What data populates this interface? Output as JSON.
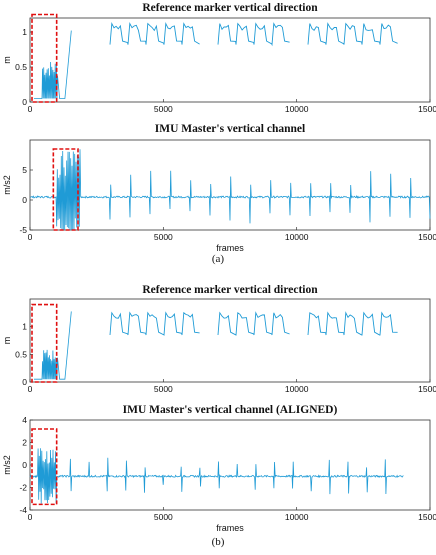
{
  "chart_data": [
    {
      "type": "line",
      "title": "Reference marker vertical direction",
      "xlabel": "",
      "ylabel": "m",
      "xlim": [
        0,
        15000
      ],
      "ylim": [
        0,
        1.2
      ],
      "xticks": [
        0,
        5000,
        10000,
        15000
      ],
      "yticks": [
        0,
        0.5,
        1
      ],
      "ytick_labels": [
        "0",
        "0.5",
        "1"
      ],
      "color": "#1f9bd6",
      "segments": [
        {
          "x": [
            450,
            1550
          ],
          "y_base": 0.05,
          "bursts": {
            "n": 14,
            "amp": 0.6
          }
        },
        {
          "x": [
            3000,
            13800
          ],
          "y_base": 0.95,
          "cycles": {
            "n": 16,
            "low": 0.82,
            "high": 1.12
          }
        }
      ],
      "highlight_box": {
        "x": [
          0,
          1000
        ],
        "y": [
          0,
          1.25
        ]
      }
    },
    {
      "type": "line",
      "title": "IMU Master's vertical channel",
      "xlabel": "frames",
      "ylabel": "m/s2",
      "xlim": [
        0,
        15000
      ],
      "ylim": [
        -5,
        10
      ],
      "xticks": [
        0,
        5000,
        10000,
        15000
      ],
      "yticks": [
        -5,
        0,
        5
      ],
      "ytick_labels": [
        "-5",
        "0",
        "5"
      ],
      "color": "#1f9bd6",
      "segments": [
        {
          "x": [
            0,
            15000
          ],
          "y_base": 0.5,
          "bursts": {
            "region": [
              1000,
              1900
            ],
            "amp": 8
          },
          "spikes": {
            "n": 16,
            "from": 3000,
            "to": 15000,
            "amp": 4
          }
        }
      ],
      "highlight_box": {
        "x": [
          800,
          1800
        ],
        "y": [
          -5,
          8.5
        ]
      }
    },
    {
      "type": "line",
      "title": "Reference marker vertical direction",
      "xlabel": "",
      "ylabel": "m",
      "xlim": [
        0,
        15000
      ],
      "ylim": [
        0,
        1.5
      ],
      "xticks": [
        0,
        5000,
        10000,
        15000
      ],
      "yticks": [
        0,
        0.5,
        1
      ],
      "ytick_labels": [
        "0",
        "0.5",
        "1"
      ],
      "color": "#1f9bd6",
      "segments": [
        {
          "x": [
            450,
            1550
          ],
          "y_base": 0.05,
          "bursts": {
            "n": 14,
            "amp": 0.6
          }
        },
        {
          "x": [
            3000,
            13800
          ],
          "y_base": 1.0,
          "cycles": {
            "n": 16,
            "low": 0.85,
            "high": 1.25
          }
        }
      ],
      "highlight_box": {
        "x": [
          0,
          1000
        ],
        "y": [
          0,
          1.4
        ]
      }
    },
    {
      "type": "line",
      "title": "IMU Master's vertical channel (ALIGNED)",
      "xlabel": "frames",
      "ylabel": "m/s2",
      "xlim": [
        0,
        15000
      ],
      "ylim": [
        -4,
        4
      ],
      "xticks": [
        0,
        5000,
        10000,
        15000
      ],
      "yticks": [
        -4,
        -2,
        0,
        2,
        4
      ],
      "ytick_labels": [
        "-4",
        "-2",
        "0",
        "2",
        "4"
      ],
      "color": "#1f9bd6",
      "segments": [
        {
          "x": [
            0,
            14000
          ],
          "y_base": -1.0,
          "bursts": {
            "region": [
              300,
              1000
            ],
            "amp": 2.5
          },
          "spikes": {
            "n": 18,
            "from": 1500,
            "to": 14000,
            "amp": 1.5
          }
        }
      ],
      "highlight_box": {
        "x": [
          0,
          1000
        ],
        "y": [
          -3.5,
          3.2
        ]
      }
    }
  ],
  "captions": [
    "(a)",
    "(b)"
  ]
}
